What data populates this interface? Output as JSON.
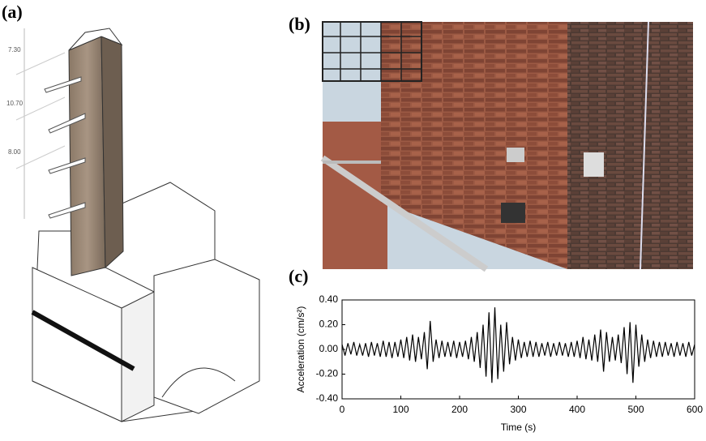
{
  "panels": {
    "a": {
      "label": "(a)",
      "dimensions": [
        "7.30",
        "10.70",
        "8.00"
      ]
    },
    "b": {
      "label": "(b)"
    },
    "c": {
      "label": "(c)"
    }
  },
  "chart_data": {
    "type": "line",
    "xlabel": "Time (s)",
    "ylabel": "Acceleration (cm/s²)",
    "xlim": [
      0,
      600
    ],
    "ylim": [
      -0.4,
      0.4
    ],
    "xticks": [
      0,
      100,
      200,
      300,
      400,
      500,
      600
    ],
    "yticks": [
      {
        "value": 0.4,
        "label": "0.40"
      },
      {
        "value": 0.2,
        "label": "0.20"
      },
      {
        "value": 0,
        "label": "0.00"
      },
      {
        "value": -0.2,
        "label": "-0.20"
      },
      {
        "value": -0.4,
        "label": "-0.40"
      }
    ],
    "x": [
      0,
      5,
      10,
      15,
      20,
      25,
      30,
      35,
      40,
      45,
      50,
      55,
      60,
      65,
      70,
      75,
      80,
      85,
      90,
      95,
      100,
      105,
      110,
      115,
      120,
      125,
      130,
      135,
      140,
      145,
      150,
      155,
      160,
      165,
      170,
      175,
      180,
      185,
      190,
      195,
      200,
      205,
      210,
      215,
      220,
      225,
      230,
      235,
      240,
      245,
      250,
      255,
      260,
      265,
      270,
      275,
      280,
      285,
      290,
      295,
      300,
      305,
      310,
      315,
      320,
      325,
      330,
      335,
      340,
      345,
      350,
      355,
      360,
      365,
      370,
      375,
      380,
      385,
      390,
      395,
      400,
      405,
      410,
      415,
      420,
      425,
      430,
      435,
      440,
      445,
      450,
      455,
      460,
      465,
      470,
      475,
      480,
      485,
      490,
      495,
      500,
      505,
      510,
      515,
      520,
      525,
      530,
      535,
      540,
      545,
      550,
      555,
      560,
      565,
      570,
      575,
      580,
      585,
      590,
      595,
      600
    ],
    "series": [
      {
        "color": "#000000",
        "values": [
          0.04,
          -0.05,
          0.05,
          -0.04,
          0.06,
          -0.05,
          0.04,
          -0.05,
          0.05,
          -0.06,
          0.06,
          -0.05,
          0.05,
          -0.06,
          0.07,
          -0.06,
          0.06,
          -0.07,
          0.06,
          -0.06,
          0.08,
          -0.07,
          0.1,
          -0.09,
          0.12,
          -0.1,
          0.1,
          -0.08,
          0.14,
          -0.16,
          0.23,
          -0.1,
          0.08,
          -0.07,
          0.07,
          -0.06,
          0.06,
          -0.06,
          0.07,
          -0.07,
          0.06,
          -0.06,
          0.07,
          -0.08,
          0.1,
          -0.1,
          0.14,
          -0.15,
          0.2,
          -0.22,
          0.3,
          -0.27,
          0.34,
          -0.24,
          0.2,
          -0.18,
          0.22,
          -0.12,
          0.1,
          -0.09,
          0.08,
          -0.07,
          0.06,
          -0.06,
          0.07,
          -0.06,
          0.06,
          -0.06,
          0.05,
          -0.05,
          0.06,
          -0.06,
          0.05,
          -0.05,
          0.06,
          -0.05,
          0.05,
          -0.06,
          0.06,
          -0.06,
          0.07,
          -0.07,
          0.1,
          -0.08,
          0.08,
          -0.09,
          0.12,
          -0.1,
          0.16,
          -0.18,
          0.14,
          -0.1,
          0.1,
          -0.09,
          0.12,
          -0.11,
          0.18,
          -0.2,
          0.22,
          -0.27,
          0.2,
          -0.14,
          0.12,
          -0.1,
          0.08,
          -0.07,
          0.07,
          -0.06,
          0.06,
          -0.06,
          0.06,
          -0.05,
          0.05,
          -0.06,
          0.06,
          -0.05,
          0.05,
          -0.06,
          0.06,
          -0.05,
          0.04
        ]
      }
    ]
  }
}
